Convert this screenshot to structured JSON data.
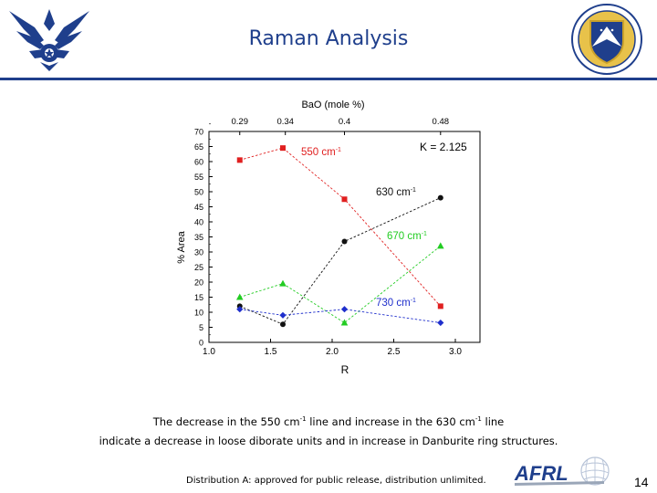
{
  "header": {
    "title": "Raman Analysis"
  },
  "colors": {
    "accent": "#1f3f8c",
    "s550": "#e02020",
    "s630": "#111111",
    "s670": "#22cc22",
    "s730": "#1f2fcc"
  },
  "chart_data": {
    "type": "line",
    "title": "",
    "xlabel": "R",
    "ylabel": "% Area",
    "top_axis_label": "BaO (mole %)",
    "top_ticks": [
      {
        "x": 1.25,
        "label": "0.29"
      },
      {
        "x": 1.62,
        "label": "0.34"
      },
      {
        "x": 2.1,
        "label": "0.4"
      },
      {
        "x": 2.88,
        "label": "0.48"
      }
    ],
    "xlim": [
      1.0,
      3.2
    ],
    "ylim": [
      0,
      70
    ],
    "xticks": [
      1.0,
      1.5,
      2.0,
      2.5,
      3.0
    ],
    "xtick_labels": [
      "1.0",
      "1.5",
      "2.0",
      "2.5",
      "3.0"
    ],
    "yticks": [
      0,
      5,
      10,
      15,
      20,
      25,
      30,
      35,
      40,
      45,
      50,
      55,
      60,
      65,
      70
    ],
    "ytick_labels": [
      "0",
      "5",
      "10",
      "15",
      "20",
      "25",
      "30",
      "35",
      "40",
      "45",
      "50",
      "55",
      "60",
      "65",
      "70"
    ],
    "grid": false,
    "x": [
      1.25,
      1.6,
      2.1,
      2.88
    ],
    "annotation": "K = 2.125",
    "series": [
      {
        "name": "550 cm",
        "sup": "-1",
        "marker": "square",
        "color": "#e02020",
        "values": [
          60.5,
          64.5,
          47.5,
          12.0
        ]
      },
      {
        "name": "630 cm",
        "sup": "-1",
        "marker": "circle",
        "color": "#111111",
        "values": [
          12.0,
          6.0,
          33.5,
          48.0
        ]
      },
      {
        "name": "670 cm",
        "sup": "-1",
        "marker": "triangle",
        "color": "#22cc22",
        "values": [
          15.0,
          19.5,
          6.5,
          32.0
        ]
      },
      {
        "name": "730 cm",
        "sup": "-1",
        "marker": "diamond",
        "color": "#1f2fcc",
        "values": [
          11.0,
          9.0,
          11.0,
          6.5
        ]
      }
    ]
  },
  "caption": {
    "line1_a": "The decrease in the 550 cm",
    "line1_sup1": "-1",
    "line1_b": " line and increase in the 630 cm",
    "line1_sup2": "-1",
    "line1_c": " line",
    "line2": "indicate a decrease in loose diborate units and in increase in Danburite ring structures."
  },
  "footer": {
    "distribution": "Distribution A: approved for public release, distribution unlimited.",
    "brand": "AFRL",
    "page_number": "14"
  }
}
